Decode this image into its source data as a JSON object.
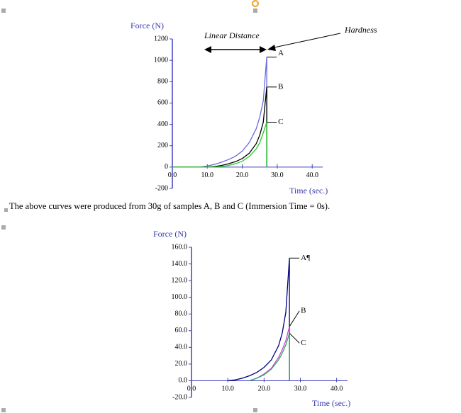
{
  "caption": "The above curves were produced from 30g of samples A, B and C (Immersion Time = 0s).",
  "chart_data": [
    {
      "type": "line",
      "ylabel": "Force (N)",
      "xlabel": "Time (sec.)",
      "annotations": [
        "Linear Distance",
        "Hardness"
      ],
      "xlim": [
        0,
        43
      ],
      "ylim": [
        -200,
        1200
      ],
      "xticks": [
        {
          "value": 0,
          "label": "0.0"
        },
        {
          "value": 10,
          "label": "10.0"
        },
        {
          "value": 20,
          "label": "20.0"
        },
        {
          "value": 30,
          "label": "30.0"
        },
        {
          "value": 40,
          "label": "40.0"
        }
      ],
      "yticks": [
        -200,
        0,
        200,
        400,
        600,
        800,
        1000,
        1200
      ],
      "x": [
        0,
        8,
        10,
        12,
        14,
        16,
        18,
        20,
        22,
        24,
        25,
        26,
        27,
        27
      ],
      "series": [
        {
          "name": "A",
          "color": "#6a6ae0",
          "values": [
            0,
            0,
            10,
            25,
            45,
            70,
            100,
            150,
            230,
            360,
            470,
            620,
            1030,
            0
          ]
        },
        {
          "name": "B",
          "color": "#000000",
          "values": [
            0,
            0,
            0,
            5,
            15,
            30,
            50,
            80,
            130,
            220,
            300,
            420,
            750,
            0
          ]
        },
        {
          "name": "C",
          "color": "#22cc22",
          "values": [
            0,
            0,
            0,
            0,
            5,
            15,
            30,
            55,
            100,
            170,
            230,
            320,
            420,
            0
          ]
        }
      ]
    },
    {
      "type": "line",
      "ylabel": "Force (N)",
      "xlabel": "Time (sec.)",
      "xlim": [
        0,
        43
      ],
      "ylim": [
        -20,
        160
      ],
      "xticks": [
        {
          "value": 0,
          "label": "0.0"
        },
        {
          "value": 10,
          "label": "10.0"
        },
        {
          "value": 20,
          "label": "20.0"
        },
        {
          "value": 30,
          "label": "30.0"
        },
        {
          "value": 40,
          "label": "40.0"
        }
      ],
      "yticks": [
        {
          "value": -20,
          "label": "-20.0"
        },
        {
          "value": 0,
          "label": "0.0"
        },
        {
          "value": 20,
          "label": "20.0"
        },
        {
          "value": 40,
          "label": "40.0"
        },
        {
          "value": 60,
          "label": "60.0"
        },
        {
          "value": 80,
          "label": "80.0"
        },
        {
          "value": 100,
          "label": "100.0"
        },
        {
          "value": 120,
          "label": "120.0"
        },
        {
          "value": 140,
          "label": "140.0"
        },
        {
          "value": 160,
          "label": "160.0"
        }
      ],
      "x": [
        10,
        12,
        14,
        16,
        18,
        20,
        22,
        24,
        25,
        26,
        27,
        27
      ],
      "series": [
        {
          "name": "A¶",
          "color": "#000080",
          "values": [
            0,
            1,
            3,
            6,
            10,
            16,
            25,
            42,
            57,
            82,
            147,
            0
          ]
        },
        {
          "name": "B",
          "color": "#cc44cc",
          "values": [
            null,
            null,
            null,
            0,
            3,
            8,
            15,
            28,
            37,
            48,
            65,
            0
          ]
        },
        {
          "name": "C",
          "color": "#33aa66",
          "values": [
            null,
            null,
            null,
            0,
            3,
            7,
            14,
            25,
            33,
            43,
            57,
            0
          ]
        }
      ]
    }
  ]
}
